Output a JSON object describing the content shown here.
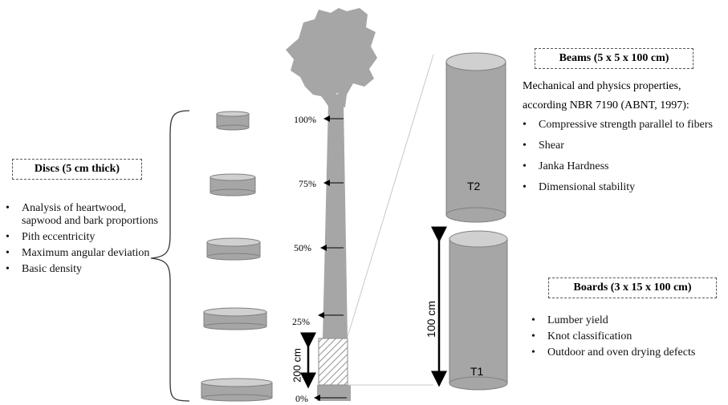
{
  "discs": {
    "title": "Discs (5 cm thick)",
    "items": [
      "Analysis of heartwood, sapwood and bark proportions",
      "Pith eccentricity",
      "Maximum angular deviation",
      "Basic density"
    ]
  },
  "stem": {
    "height_labels": [
      "100%",
      "75%",
      "50%",
      "25%",
      "0%"
    ],
    "board_section_length": "200 cm"
  },
  "beams": {
    "title": "Beams (5 x 5 x 100 cm)",
    "intro_line1": "Mechanical and physics properties,",
    "intro_line2": "according NBR 7190 (ABNT, 1997):",
    "items": [
      "Compressive strength parallel to fibers",
      "Shear",
      "Janka Hardness",
      "Dimensional stability"
    ],
    "sample_label": "T2"
  },
  "boards": {
    "title": "Boards (3 x 15 x 100 cm)",
    "items": [
      "Lumber yield",
      "Knot classification",
      "Outdoor and oven drying defects"
    ],
    "sample_label": "T1",
    "length_label": "100 cm"
  },
  "colors": {
    "wood_gray": "#a6a6a6",
    "wood_top": "#d0d0d0",
    "outline": "#7f7f7f",
    "text": "#000000"
  }
}
